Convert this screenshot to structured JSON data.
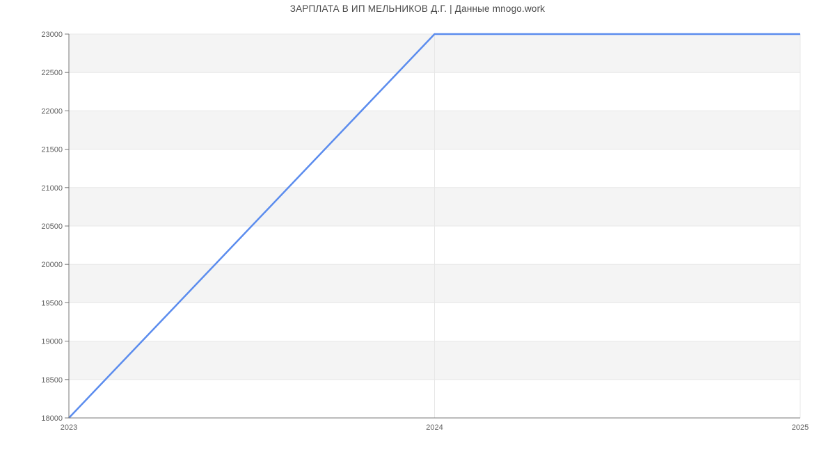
{
  "page": {
    "title": "ЗАРПЛАТА В ИП МЕЛЬНИКОВ Д.Г. | Данные mnogo.work"
  },
  "chart_data": {
    "type": "line",
    "title": "ЗАРПЛАТА В ИП МЕЛЬНИКОВ Д.Г. | Данные mnogo.work",
    "x": [
      2023,
      2024,
      2025
    ],
    "values": [
      18000,
      23000,
      23000
    ],
    "xlabel": "",
    "ylabel": "",
    "xlim": [
      2023,
      2025
    ],
    "ylim": [
      18000,
      23000
    ],
    "xticks": [
      2023,
      2024,
      2025
    ],
    "yticks": [
      18000,
      18500,
      19000,
      19500,
      20000,
      20500,
      21000,
      21500,
      22000,
      22500,
      23000
    ],
    "grid": true,
    "legend": false,
    "band_fill_alternating": true,
    "colors": {
      "line": "#5b8cee",
      "band": "#f4f4f4",
      "grid": "#e7e7e7",
      "axis": "#777777",
      "tick_text": "#616161",
      "title_text": "#4a4a4a",
      "background": "#ffffff"
    }
  }
}
